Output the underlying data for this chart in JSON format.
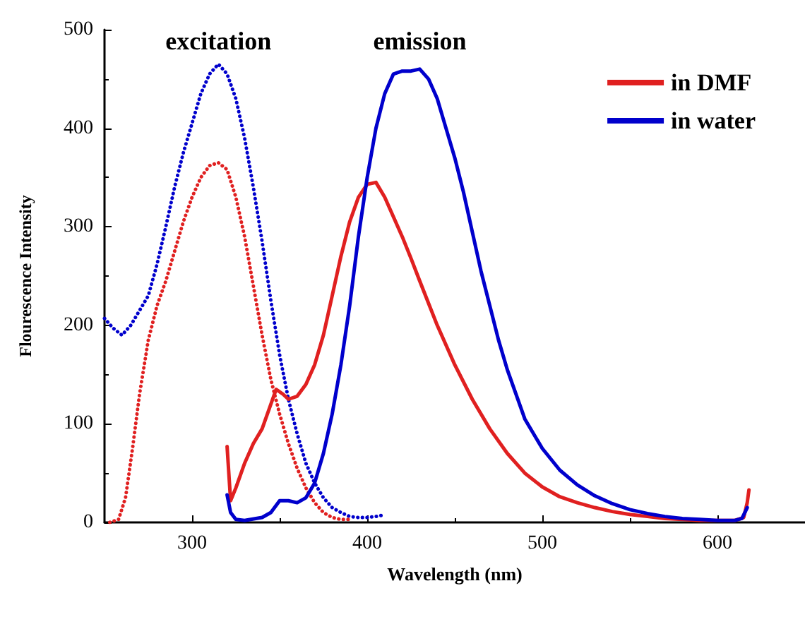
{
  "chart_data": {
    "type": "line",
    "xlabel": "Wavelength (nm)",
    "ylabel": "Flourescence Intensity",
    "annotations": [
      "excitation",
      "emission"
    ],
    "xlim": [
      250,
      650
    ],
    "xticks": [
      300,
      400,
      500,
      600
    ],
    "ylim": [
      0,
      500
    ],
    "yticks": [
      0,
      100,
      200,
      300,
      400,
      500
    ],
    "grid": false,
    "legend": "top right",
    "marker": "none",
    "series": [
      {
        "color": "#0000cc",
        "line_style": "dotted",
        "x": [
          250,
          255,
          260,
          265,
          270,
          275,
          280,
          285,
          290,
          295,
          300,
          305,
          310,
          315,
          320,
          325,
          330,
          335,
          340,
          345,
          350,
          355,
          360,
          365,
          370,
          375,
          380,
          385,
          390,
          395,
          400,
          405,
          408
        ],
        "values": [
          207,
          197,
          190,
          200,
          215,
          230,
          262,
          300,
          340,
          375,
          405,
          435,
          455,
          465,
          455,
          430,
          390,
          340,
          285,
          225,
          170,
          125,
          90,
          60,
          40,
          25,
          15,
          10,
          6,
          5,
          5,
          6,
          7
        ]
      },
      {
        "color": "#e02020",
        "line_style": "dotted",
        "x": [
          253,
          258,
          262,
          266,
          270,
          275,
          280,
          285,
          290,
          295,
          300,
          305,
          310,
          315,
          320,
          325,
          330,
          335,
          340,
          345,
          350,
          355,
          360,
          365,
          370,
          375,
          380,
          385,
          390
        ],
        "values": [
          0,
          3,
          25,
          75,
          130,
          185,
          220,
          245,
          275,
          305,
          330,
          350,
          362,
          365,
          358,
          330,
          290,
          240,
          190,
          145,
          110,
          80,
          55,
          35,
          20,
          10,
          5,
          3,
          3
        ]
      },
      {
        "name": "in DMF",
        "color": "#e02020",
        "line_style": "solid",
        "x": [
          320,
          322,
          325,
          330,
          335,
          340,
          345,
          348,
          352,
          355,
          360,
          365,
          370,
          375,
          380,
          385,
          390,
          395,
          400,
          405,
          410,
          415,
          420,
          425,
          430,
          440,
          450,
          460,
          470,
          480,
          490,
          500,
          510,
          520,
          530,
          540,
          550,
          560,
          570,
          580,
          590,
          600,
          610,
          615,
          617,
          618
        ],
        "values": [
          77,
          22,
          35,
          60,
          80,
          95,
          120,
          135,
          130,
          125,
          128,
          140,
          160,
          190,
          230,
          270,
          305,
          330,
          343,
          345,
          330,
          310,
          290,
          268,
          245,
          200,
          160,
          125,
          95,
          70,
          50,
          36,
          26,
          20,
          15,
          11,
          8,
          6,
          4,
          3,
          2,
          2,
          2,
          5,
          20,
          33
        ]
      },
      {
        "name": "in water",
        "color": "#0000cc",
        "line_style": "solid",
        "x": [
          320,
          322,
          325,
          330,
          340,
          345,
          350,
          355,
          360,
          365,
          370,
          375,
          380,
          385,
          390,
          395,
          400,
          405,
          410,
          415,
          420,
          425,
          430,
          435,
          440,
          445,
          450,
          455,
          460,
          465,
          470,
          475,
          480,
          490,
          500,
          510,
          520,
          530,
          540,
          550,
          560,
          570,
          580,
          590,
          600,
          610,
          614,
          617
        ],
        "values": [
          28,
          10,
          3,
          2,
          5,
          10,
          22,
          22,
          20,
          25,
          40,
          70,
          110,
          160,
          220,
          290,
          350,
          400,
          435,
          455,
          458,
          458,
          460,
          450,
          430,
          400,
          370,
          335,
          295,
          255,
          220,
          185,
          155,
          105,
          75,
          53,
          38,
          27,
          19,
          13,
          9,
          6,
          4,
          3,
          2,
          2,
          4,
          15
        ]
      }
    ]
  }
}
